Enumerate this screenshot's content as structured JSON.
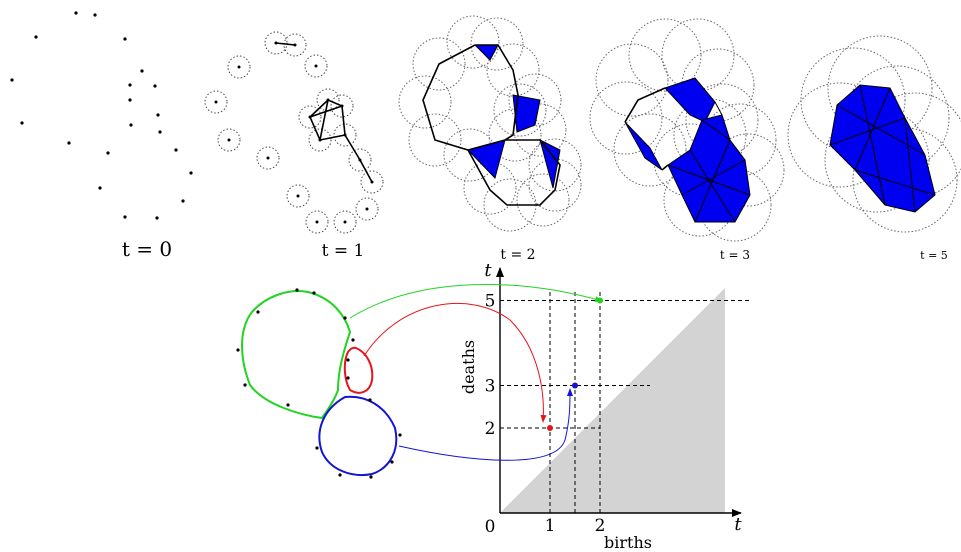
{
  "stages": [
    {
      "label": "t = 0"
    },
    {
      "label": "t = 1"
    },
    {
      "label": "t = 2"
    },
    {
      "label": "t = 3"
    },
    {
      "label": "t = 5"
    }
  ],
  "diagram": {
    "axis_var_y": "t",
    "axis_var_x": "t",
    "ylabel": "deaths",
    "xlabel": "births",
    "origin": "0",
    "xticks": [
      "1",
      "2"
    ],
    "yticks": [
      "2",
      "3",
      "5"
    ],
    "points": [
      {
        "name": "red",
        "birth": 1,
        "death": 2,
        "color": "#e8141b"
      },
      {
        "name": "blue",
        "birth": 1.5,
        "death": 3,
        "color": "#1414d2"
      },
      {
        "name": "green",
        "birth": 2,
        "death": 5,
        "color": "#22d322"
      }
    ]
  },
  "colors": {
    "fill": "#0000f0",
    "diagonal_region": "#d3d3d3"
  }
}
